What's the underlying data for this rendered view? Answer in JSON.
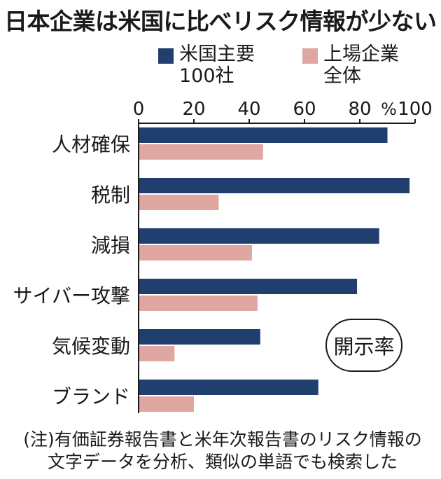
{
  "title": "日本企業は米国に比べリスク情報が少ない",
  "legend": {
    "series1": "米国主要\n100社",
    "series2": "上場企業\n全体"
  },
  "badge": "開示率",
  "note": "(注)有価証券報告書と米年次報告書のリスク情報の\n文字データを分析、類似の単語でも検索した",
  "colors": {
    "us": "#213f6e",
    "jp": "#e0a7a2",
    "axis": "#1a1a1a"
  },
  "chart_data": {
    "type": "bar",
    "orientation": "horizontal",
    "categories": [
      "人材確保",
      "税制",
      "減損",
      "サイバー攻撃",
      "気候変動",
      "ブランド"
    ],
    "series": [
      {
        "name": "米国主要100社",
        "values": [
          90,
          98,
          87,
          79,
          44,
          65
        ]
      },
      {
        "name": "上場企業全体",
        "values": [
          45,
          29,
          41,
          43,
          13,
          20
        ]
      }
    ],
    "xticks": [
      "0",
      "20",
      "40",
      "60",
      "80",
      "100"
    ],
    "unit": "%",
    "xlim": [
      0,
      100
    ]
  }
}
